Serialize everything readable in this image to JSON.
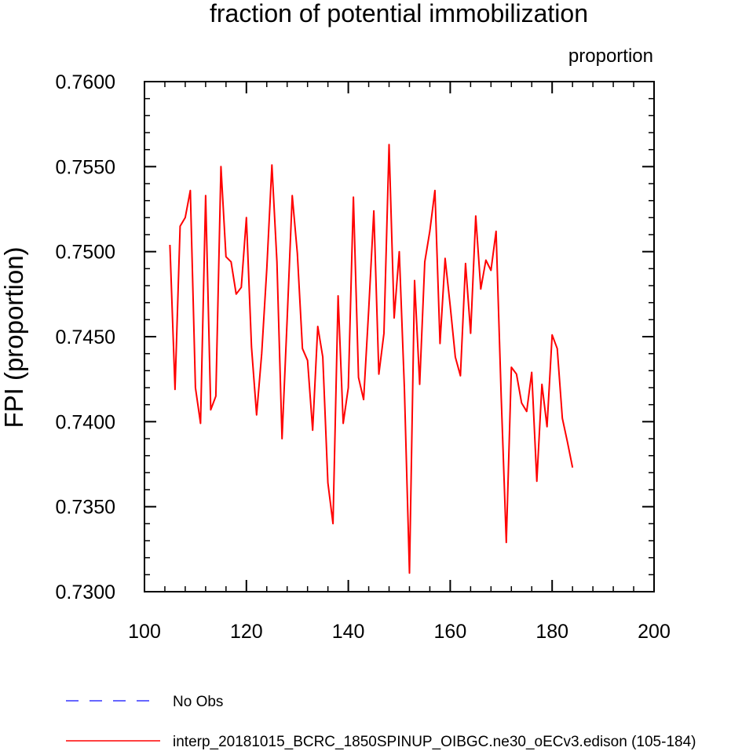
{
  "chart_data": {
    "type": "line",
    "title": "fraction of potential immobilization",
    "units_label": "proportion",
    "xlabel": "",
    "ylabel": "FPI  (proportion)",
    "xlim": [
      100,
      200
    ],
    "ylim": [
      0.73,
      0.76
    ],
    "x_ticks": [
      100,
      120,
      140,
      160,
      180,
      200
    ],
    "x_tick_labels": [
      "100",
      "120",
      "140",
      "160",
      "180",
      "200"
    ],
    "y_ticks": [
      0.73,
      0.735,
      0.74,
      0.745,
      0.75,
      0.755,
      0.76
    ],
    "y_tick_labels": [
      "0.7300",
      "0.7350",
      "0.7400",
      "0.7450",
      "0.7500",
      "0.7550",
      "0.7600"
    ],
    "grid": false,
    "legend_position": "bottom",
    "legend": [
      {
        "label": "No Obs",
        "color": "#3333ff",
        "style": "dashed"
      },
      {
        "label": "interp_20181015_BCRC_1850SPINUP_OIBGC.ne30_oECv3.edison (105-184)",
        "color": "#ff0000",
        "style": "solid"
      }
    ],
    "series": [
      {
        "name": "interp_20181015_BCRC_1850SPINUP_OIBGC.ne30_oECv3.edison (105-184)",
        "color": "#ff0000",
        "x": [
          105,
          106,
          107,
          108,
          109,
          110,
          111,
          112,
          113,
          114,
          115,
          116,
          117,
          118,
          119,
          120,
          121,
          122,
          123,
          124,
          125,
          126,
          127,
          128,
          129,
          130,
          131,
          132,
          133,
          134,
          135,
          136,
          137,
          138,
          139,
          140,
          141,
          142,
          143,
          144,
          145,
          146,
          147,
          148,
          149,
          150,
          151,
          152,
          153,
          154,
          155,
          156,
          157,
          158,
          159,
          160,
          161,
          162,
          163,
          164,
          165,
          166,
          167,
          168,
          169,
          170,
          171,
          172,
          173,
          174,
          175,
          176,
          177,
          178,
          179,
          180,
          181,
          182,
          183,
          184
        ],
        "values": [
          0.7504,
          0.7419,
          0.7515,
          0.752,
          0.7536,
          0.742,
          0.7399,
          0.7533,
          0.7407,
          0.7415,
          0.755,
          0.7497,
          0.7494,
          0.7475,
          0.7479,
          0.752,
          0.7444,
          0.7404,
          0.744,
          0.749,
          0.7551,
          0.7494,
          0.739,
          0.746,
          0.7533,
          0.7499,
          0.7443,
          0.7436,
          0.7395,
          0.7456,
          0.7438,
          0.7364,
          0.734,
          0.7474,
          0.7399,
          0.742,
          0.7532,
          0.7426,
          0.7413,
          0.7466,
          0.7524,
          0.7428,
          0.7452,
          0.7563,
          0.7461,
          0.75,
          0.742,
          0.7311,
          0.7483,
          0.7422,
          0.7494,
          0.7512,
          0.7536,
          0.7446,
          0.7496,
          0.7468,
          0.7438,
          0.7427,
          0.7493,
          0.7452,
          0.7521,
          0.7478,
          0.7495,
          0.7489,
          0.7512,
          0.7415,
          0.7329,
          0.7432,
          0.7428,
          0.7411,
          0.7406,
          0.7429,
          0.7365,
          0.7422,
          0.7397,
          0.7451,
          0.7443,
          0.7402,
          0.7388,
          0.7373
        ]
      }
    ]
  }
}
